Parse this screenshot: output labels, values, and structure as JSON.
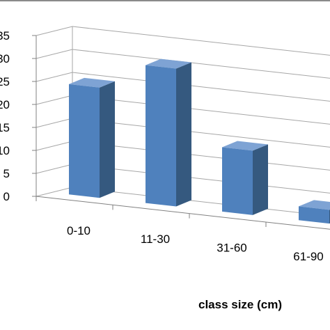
{
  "chart_data": {
    "type": "bar",
    "style": "3d-column",
    "categories": [
      "0-10",
      "11-30",
      "31-60",
      "61-90"
    ],
    "values": [
      24,
      30,
      14,
      3
    ],
    "title": "",
    "xlabel": "class size (cm)",
    "ylabel": "",
    "y_ticks": [
      "0",
      "5",
      "10",
      "15",
      "20",
      "25",
      "30",
      "35"
    ],
    "ylim": [
      0,
      35
    ],
    "grid": true,
    "legend": "none",
    "colors": {
      "bar_front": "#4f81bd",
      "bar_side": "#35597f",
      "bar_top": "#7ea3d4",
      "gridline": "#a6a6a6",
      "axis": "#808080"
    }
  }
}
